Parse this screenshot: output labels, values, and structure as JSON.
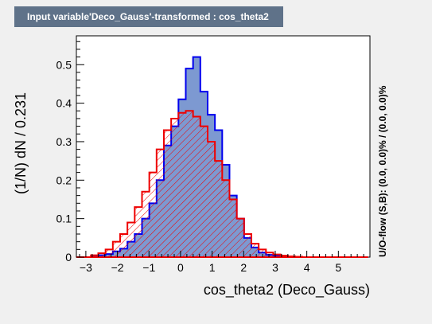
{
  "title": "Input variable'Deco_Gauss'-transformed : cos_theta2",
  "chart_data": {
    "type": "histogram",
    "xlabel": "cos_theta2 (Deco_Gauss)",
    "ylabel": "(1/N) dN / 0.231",
    "right_label": "U/O-flow (S,B): (0.0, 0.0)% / (0.0, 0.0)%",
    "xlim": [
      -3.3,
      6.0
    ],
    "ylim": [
      0,
      0.575
    ],
    "x_ticks": [
      -3,
      -2,
      -1,
      0,
      1,
      2,
      3,
      4,
      5
    ],
    "x_tick_labels": [
      "−3",
      "−2",
      "−1",
      "0",
      "1",
      "2",
      "3",
      "4",
      "5"
    ],
    "y_ticks": [
      0,
      0.1,
      0.2,
      0.3,
      0.4,
      0.5
    ],
    "y_tick_labels": [
      "0",
      "0.1",
      "0.2",
      "0.3",
      "0.4",
      "0.5"
    ],
    "bin_width": 0.231,
    "bin_edges_start": -3.3,
    "series": [
      {
        "fill": "#7d99d1",
        "line": "#0000ee",
        "values": [
          0,
          0,
          0.003,
          0.005,
          0.008,
          0.015,
          0.022,
          0.04,
          0.06,
          0.1,
          0.14,
          0.2,
          0.29,
          0.34,
          0.41,
          0.49,
          0.52,
          0.43,
          0.37,
          0.33,
          0.24,
          0.16,
          0.1,
          0.05,
          0.025,
          0.012,
          0.006,
          0.003,
          0.001,
          0,
          0,
          0,
          0,
          0,
          0,
          0,
          0,
          0,
          0,
          0
        ]
      },
      {
        "fill": "none",
        "hatch": true,
        "line": "#ee0000",
        "values": [
          0,
          0,
          0.005,
          0.01,
          0.02,
          0.04,
          0.06,
          0.09,
          0.13,
          0.17,
          0.22,
          0.28,
          0.33,
          0.36,
          0.375,
          0.38,
          0.365,
          0.34,
          0.3,
          0.25,
          0.2,
          0.15,
          0.1,
          0.06,
          0.035,
          0.02,
          0.012,
          0.007,
          0.004,
          0.002,
          0.001,
          0,
          0,
          0,
          0,
          0,
          0,
          0,
          0,
          0
        ]
      }
    ]
  }
}
